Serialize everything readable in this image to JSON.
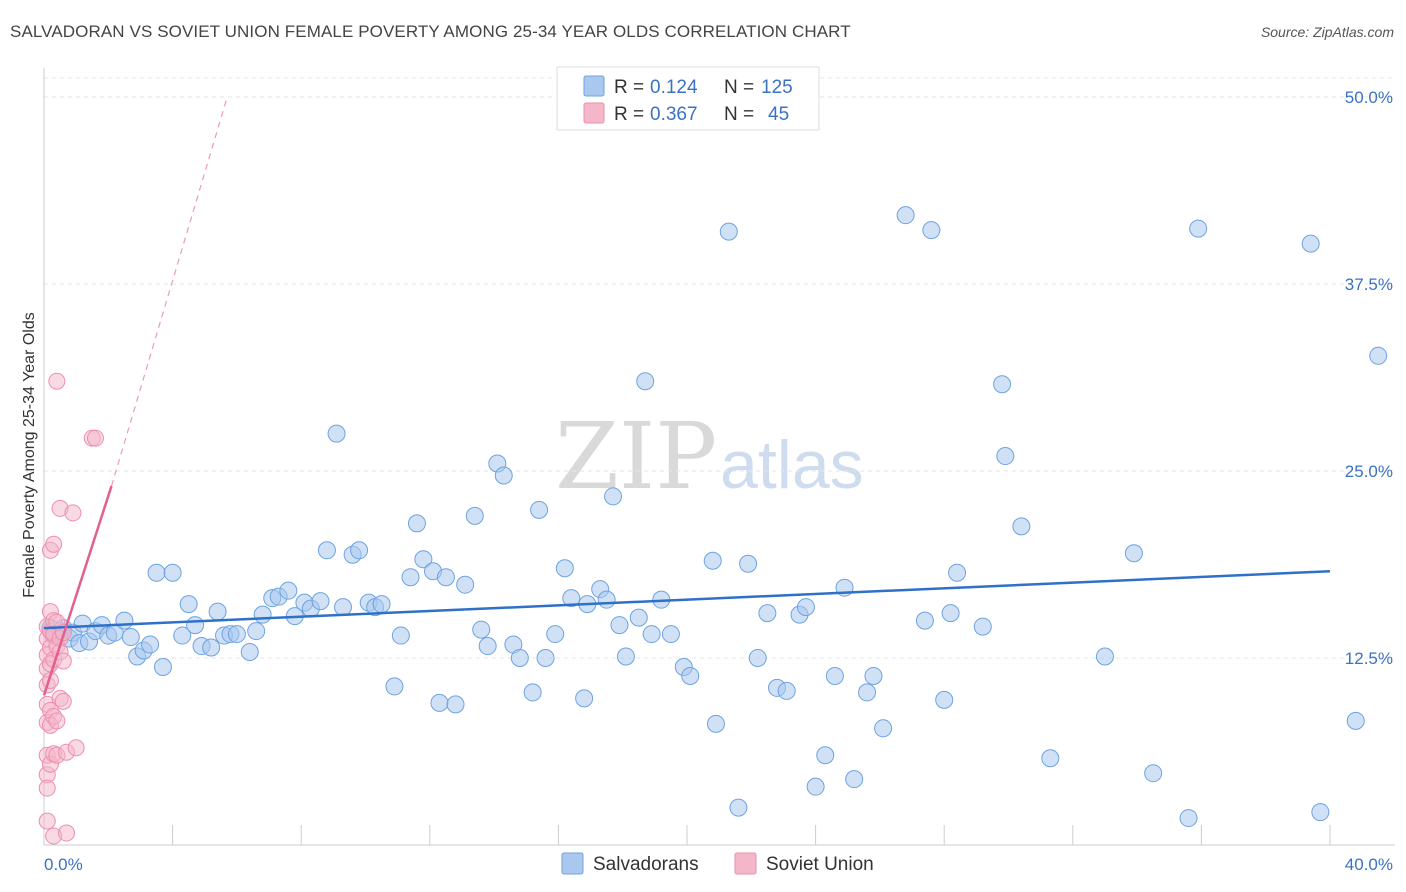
{
  "header": {
    "title": "SALVADORAN VS SOVIET UNION FEMALE POVERTY AMONG 25-34 YEAR OLDS CORRELATION CHART",
    "source": "Source: ZipAtlas.com"
  },
  "watermark": {
    "zip": "ZIP",
    "atlas": "atlas"
  },
  "legend": {
    "rows": [
      {
        "r_label": "R =",
        "r_value": "0.124",
        "n_label": "N =",
        "n_value": "125",
        "color": "#a9c8ef"
      },
      {
        "r_label": "R =",
        "r_value": "0.367",
        "n_label": "N =",
        "n_value": "45",
        "color": "#f4b6c9"
      }
    ]
  },
  "bottom_legend": [
    {
      "label": "Salvadorans",
      "color": "#a9c8ef"
    },
    {
      "label": "Soviet Union",
      "color": "#f4b6c9"
    }
  ],
  "chart_data": {
    "type": "scatter",
    "title": "SALVADORAN VS SOVIET UNION FEMALE POVERTY AMONG 25-34 YEAR OLDS CORRELATION CHART",
    "xlabel": "",
    "ylabel": "Female Poverty Among 25-34 Year Olds",
    "xlim": [
      0,
      40
    ],
    "ylim": [
      0,
      50
    ],
    "x_tick_labels": [
      "0.0%",
      "40.0%"
    ],
    "y_ticks": [
      12.5,
      25.0,
      37.5,
      50.0
    ],
    "y_tick_labels": [
      "12.5%",
      "25.0%",
      "37.5%",
      "50.0%"
    ],
    "grid": true,
    "legend_position": "top-center",
    "series": [
      {
        "name": "Salvadorans",
        "color": "#6ea3e0",
        "trend": {
          "x": [
            0.0,
            40.0
          ],
          "y": [
            14.5,
            18.3
          ]
        },
        "points": [
          [
            0.2,
            14.5
          ],
          [
            0.3,
            14.0
          ],
          [
            0.5,
            14.3
          ],
          [
            0.6,
            14.5
          ],
          [
            0.8,
            13.8
          ],
          [
            0.9,
            14.2
          ],
          [
            1.1,
            13.5
          ],
          [
            1.2,
            14.8
          ],
          [
            1.4,
            13.6
          ],
          [
            1.6,
            14.3
          ],
          [
            1.8,
            14.7
          ],
          [
            2.0,
            14.0
          ],
          [
            2.2,
            14.2
          ],
          [
            2.5,
            15.0
          ],
          [
            2.7,
            13.9
          ],
          [
            2.9,
            12.6
          ],
          [
            3.1,
            13.0
          ],
          [
            3.3,
            13.4
          ],
          [
            3.5,
            18.2
          ],
          [
            3.7,
            11.9
          ],
          [
            4.0,
            18.2
          ],
          [
            4.3,
            14.0
          ],
          [
            4.5,
            16.1
          ],
          [
            4.7,
            14.7
          ],
          [
            4.9,
            13.3
          ],
          [
            5.2,
            13.2
          ],
          [
            5.4,
            15.6
          ],
          [
            5.6,
            14.0
          ],
          [
            5.8,
            14.1
          ],
          [
            6.0,
            14.1
          ],
          [
            6.4,
            12.9
          ],
          [
            6.6,
            14.3
          ],
          [
            6.8,
            15.4
          ],
          [
            7.1,
            16.5
          ],
          [
            7.3,
            16.6
          ],
          [
            7.6,
            17.0
          ],
          [
            7.8,
            15.3
          ],
          [
            8.1,
            16.2
          ],
          [
            8.3,
            15.8
          ],
          [
            8.6,
            16.3
          ],
          [
            8.8,
            19.7
          ],
          [
            9.1,
            27.5
          ],
          [
            9.3,
            15.9
          ],
          [
            9.6,
            19.4
          ],
          [
            9.8,
            19.7
          ],
          [
            10.1,
            16.2
          ],
          [
            10.3,
            15.9
          ],
          [
            10.5,
            16.1
          ],
          [
            10.9,
            10.6
          ],
          [
            11.1,
            14.0
          ],
          [
            11.4,
            17.9
          ],
          [
            11.6,
            21.5
          ],
          [
            11.8,
            19.1
          ],
          [
            12.1,
            18.3
          ],
          [
            12.3,
            9.5
          ],
          [
            12.5,
            17.9
          ],
          [
            12.8,
            9.4
          ],
          [
            13.1,
            17.4
          ],
          [
            13.4,
            22.0
          ],
          [
            13.6,
            14.4
          ],
          [
            13.8,
            13.3
          ],
          [
            14.1,
            25.5
          ],
          [
            14.3,
            24.7
          ],
          [
            14.6,
            13.4
          ],
          [
            14.8,
            12.5
          ],
          [
            15.2,
            10.2
          ],
          [
            15.4,
            22.4
          ],
          [
            15.6,
            12.5
          ],
          [
            15.9,
            14.1
          ],
          [
            16.2,
            18.5
          ],
          [
            16.4,
            16.5
          ],
          [
            16.8,
            9.8
          ],
          [
            16.9,
            16.1
          ],
          [
            17.3,
            17.1
          ],
          [
            17.5,
            16.4
          ],
          [
            17.7,
            23.3
          ],
          [
            17.9,
            14.7
          ],
          [
            18.1,
            12.6
          ],
          [
            18.5,
            15.2
          ],
          [
            18.7,
            31.0
          ],
          [
            18.9,
            14.1
          ],
          [
            19.2,
            16.4
          ],
          [
            19.5,
            14.1
          ],
          [
            19.9,
            11.9
          ],
          [
            20.1,
            11.3
          ],
          [
            20.8,
            19.0
          ],
          [
            20.9,
            8.1
          ],
          [
            21.3,
            41.0
          ],
          [
            21.6,
            2.5
          ],
          [
            21.9,
            18.8
          ],
          [
            22.2,
            12.5
          ],
          [
            22.5,
            15.5
          ],
          [
            22.8,
            10.5
          ],
          [
            23.1,
            10.3
          ],
          [
            23.5,
            15.4
          ],
          [
            23.7,
            15.9
          ],
          [
            24.0,
            3.9
          ],
          [
            24.3,
            6.0
          ],
          [
            24.6,
            11.3
          ],
          [
            24.9,
            17.2
          ],
          [
            25.2,
            4.4
          ],
          [
            25.6,
            10.2
          ],
          [
            25.8,
            11.3
          ],
          [
            26.1,
            7.8
          ],
          [
            26.8,
            42.1
          ],
          [
            27.4,
            15.0
          ],
          [
            27.6,
            41.1
          ],
          [
            28.0,
            9.7
          ],
          [
            28.2,
            15.5
          ],
          [
            28.4,
            18.2
          ],
          [
            29.2,
            14.6
          ],
          [
            29.8,
            30.8
          ],
          [
            29.9,
            26.0
          ],
          [
            30.4,
            21.3
          ],
          [
            31.3,
            5.8
          ],
          [
            33.0,
            12.6
          ],
          [
            33.9,
            19.5
          ],
          [
            34.5,
            4.8
          ],
          [
            35.6,
            1.8
          ],
          [
            35.9,
            41.2
          ],
          [
            39.4,
            40.2
          ],
          [
            39.7,
            2.2
          ],
          [
            40.8,
            8.3
          ],
          [
            41.5,
            32.7
          ]
        ]
      },
      {
        "name": "Soviet Union",
        "color": "#ee8fad",
        "trend": {
          "x": [
            0.0,
            2.1
          ],
          "y": [
            10.0,
            24.0
          ]
        },
        "trend_extended": {
          "x": [
            2.1,
            5.7
          ],
          "y": [
            24.0,
            50.0
          ]
        },
        "points": [
          [
            0.1,
            14.6
          ],
          [
            0.1,
            13.8
          ],
          [
            0.1,
            12.7
          ],
          [
            0.1,
            11.8
          ],
          [
            0.1,
            10.7
          ],
          [
            0.1,
            9.4
          ],
          [
            0.1,
            8.2
          ],
          [
            0.1,
            6.0
          ],
          [
            0.1,
            4.7
          ],
          [
            0.1,
            3.8
          ],
          [
            0.1,
            1.6
          ],
          [
            0.2,
            15.6
          ],
          [
            0.2,
            14.3
          ],
          [
            0.2,
            13.2
          ],
          [
            0.2,
            12.1
          ],
          [
            0.2,
            11.0
          ],
          [
            0.2,
            9.0
          ],
          [
            0.2,
            8.0
          ],
          [
            0.2,
            5.4
          ],
          [
            0.2,
            19.7
          ],
          [
            0.3,
            20.1
          ],
          [
            0.3,
            15.0
          ],
          [
            0.3,
            14.1
          ],
          [
            0.3,
            12.4
          ],
          [
            0.3,
            8.6
          ],
          [
            0.3,
            6.1
          ],
          [
            0.3,
            0.6
          ],
          [
            0.4,
            31.0
          ],
          [
            0.4,
            14.9
          ],
          [
            0.4,
            13.3
          ],
          [
            0.4,
            8.3
          ],
          [
            0.4,
            6.0
          ],
          [
            0.5,
            13.8
          ],
          [
            0.5,
            12.9
          ],
          [
            0.5,
            9.8
          ],
          [
            0.5,
            22.5
          ],
          [
            0.6,
            14.2
          ],
          [
            0.6,
            12.3
          ],
          [
            0.6,
            9.6
          ],
          [
            0.7,
            6.2
          ],
          [
            0.7,
            0.8
          ],
          [
            0.9,
            22.2
          ],
          [
            1.0,
            6.5
          ],
          [
            1.5,
            27.2
          ],
          [
            1.6,
            27.2
          ]
        ]
      }
    ]
  }
}
